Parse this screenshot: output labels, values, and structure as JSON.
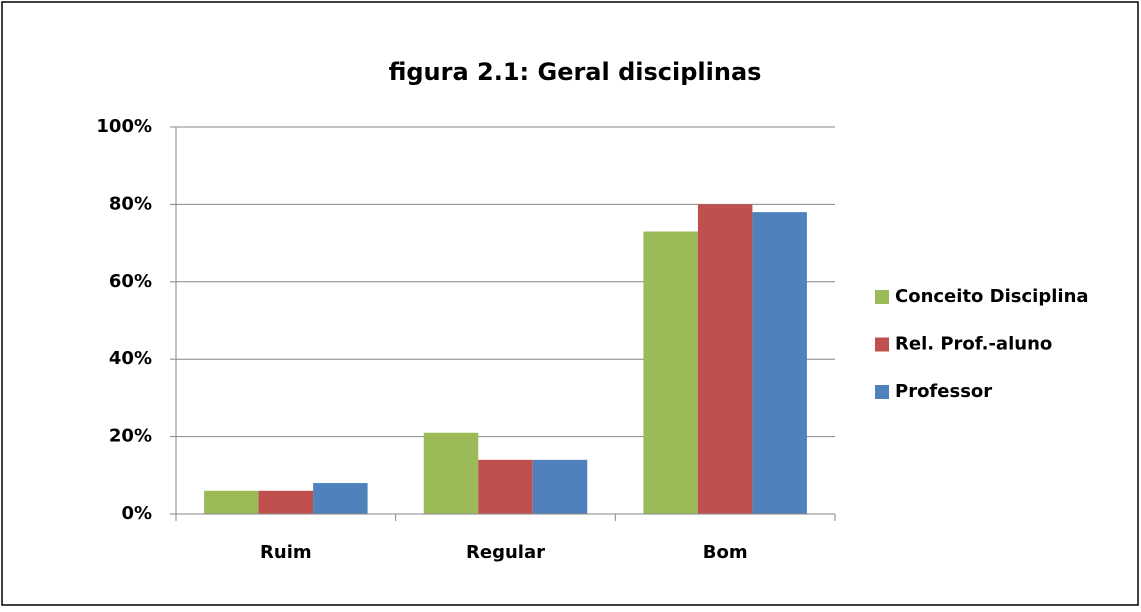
{
  "chart_data": {
    "type": "bar",
    "title": "figura 2.1: Geral disciplinas",
    "categories": [
      "Ruim",
      "Regular",
      "Bom"
    ],
    "series": [
      {
        "name": "Conceito Disciplina",
        "color": "#9bbb59",
        "values": [
          6,
          21,
          73
        ]
      },
      {
        "name": "Rel. Prof.-aluno",
        "color": "#c0504d",
        "values": [
          6,
          14,
          80
        ]
      },
      {
        "name": "Professor",
        "color": "#4f81bd",
        "values": [
          8,
          14,
          78
        ]
      }
    ],
    "ylim": [
      0,
      100
    ],
    "yticks": [
      {
        "value": 0,
        "label": "0%"
      },
      {
        "value": 20,
        "label": "20%"
      },
      {
        "value": 40,
        "label": "40%"
      },
      {
        "value": 60,
        "label": "60%"
      },
      {
        "value": 80,
        "label": "80%"
      },
      {
        "value": 100,
        "label": "100%"
      }
    ],
    "grid": true,
    "legend": "right"
  }
}
